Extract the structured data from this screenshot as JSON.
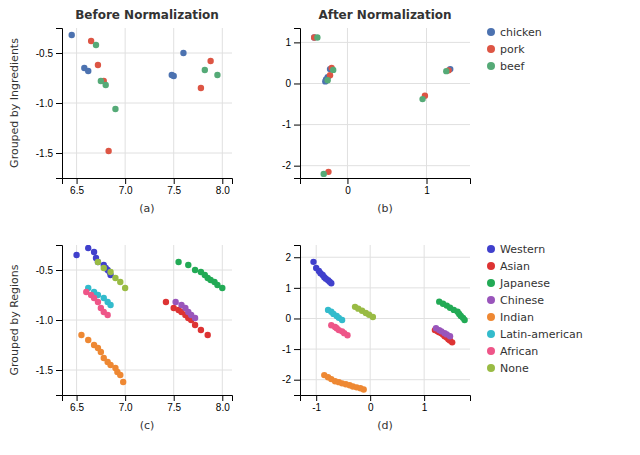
{
  "chart_data": [
    {
      "type": "scatter",
      "title": "Before Normalization",
      "xlabel": "(a)",
      "ylabel": "Grouped by Ingredients",
      "xlim": [
        6.35,
        8.1
      ],
      "ylim": [
        -1.75,
        -0.25
      ],
      "xticks": [
        6.5,
        {
          "value": 7.0,
          "label": "7.0"
        },
        7.5,
        {
          "value": 8.0,
          "label": "8.0"
        }
      ],
      "yticks": [
        -1.5,
        {
          "value": -1.0,
          "label": "-1.0"
        },
        -0.5
      ],
      "grid": true,
      "series": [
        {
          "color": "#4c72b0",
          "x": [
            6.45,
            6.58,
            6.62,
            7.48,
            7.5,
            7.6
          ],
          "values": [
            -0.32,
            -0.65,
            -0.68,
            -0.72,
            -0.73,
            -0.5
          ]
        },
        {
          "color": "#dd5544",
          "x": [
            6.65,
            6.72,
            6.78,
            6.83,
            7.78,
            7.88
          ],
          "values": [
            -0.38,
            -0.62,
            -0.78,
            -1.48,
            -0.85,
            -0.58
          ]
        },
        {
          "color": "#55aa77",
          "x": [
            6.7,
            6.75,
            6.8,
            6.9,
            7.82,
            7.95
          ],
          "values": [
            -0.42,
            -0.78,
            -0.82,
            -1.06,
            -0.67,
            -0.72
          ]
        }
      ]
    },
    {
      "type": "scatter",
      "title": "After Normalization",
      "xlabel": "(b)",
      "xlim": [
        -0.6,
        1.55
      ],
      "ylim": [
        -2.3,
        1.35
      ],
      "xticks": [
        0,
        1
      ],
      "yticks": [
        -2,
        -1,
        0,
        1
      ],
      "grid": true,
      "legend": "right",
      "series": [
        {
          "name": "chicken",
          "color": "#4c72b0",
          "x": [
            -0.42,
            -0.22,
            -0.25,
            -0.27,
            -0.28,
            1.3
          ],
          "values": [
            1.12,
            0.35,
            0.15,
            0.1,
            0.05,
            0.35
          ]
        },
        {
          "name": "pork",
          "color": "#dd5544",
          "x": [
            -0.42,
            -0.2,
            -0.22,
            -0.24,
            0.98,
            1.28
          ],
          "values": [
            1.12,
            0.38,
            0.2,
            -2.15,
            -0.3,
            0.32
          ]
        },
        {
          "name": "beef",
          "color": "#55aa77",
          "x": [
            -0.38,
            -0.18,
            -0.25,
            -0.3,
            0.95,
            1.25
          ],
          "values": [
            1.12,
            0.33,
            0.08,
            -2.2,
            -0.38,
            0.3
          ]
        }
      ]
    },
    {
      "type": "scatter",
      "xlabel": "(c)",
      "ylabel": "Grouped by Regions",
      "xlim": [
        6.35,
        8.1
      ],
      "ylim": [
        -1.75,
        -0.25
      ],
      "xticks": [
        6.5,
        {
          "value": 7.0,
          "label": "7.0"
        },
        7.5,
        {
          "value": 8.0,
          "label": "8.0"
        }
      ],
      "yticks": [
        -1.5,
        {
          "value": -1.0,
          "label": "-1.0"
        },
        -0.5
      ],
      "grid": true,
      "series": [
        {
          "color": "#4040cc",
          "x": [
            6.5,
            6.62,
            6.68,
            6.7,
            6.72,
            6.78,
            6.8,
            6.82,
            6.84,
            6.85
          ],
          "values": [
            -0.35,
            -0.28,
            -0.32,
            -0.38,
            -0.42,
            -0.45,
            -0.48,
            -0.5,
            -0.52,
            -0.55
          ]
        },
        {
          "color": "#dd3333",
          "x": [
            7.42,
            7.5,
            7.55,
            7.58,
            7.62,
            7.65,
            7.68,
            7.72,
            7.78,
            7.85
          ],
          "values": [
            -0.82,
            -0.88,
            -0.9,
            -0.92,
            -0.95,
            -0.98,
            -1.0,
            -1.05,
            -1.1,
            -1.15
          ]
        },
        {
          "color": "#22aa55",
          "x": [
            7.55,
            7.65,
            7.72,
            7.78,
            7.82,
            7.85,
            7.88,
            7.92,
            7.95,
            8.0
          ],
          "values": [
            -0.42,
            -0.45,
            -0.5,
            -0.52,
            -0.55,
            -0.58,
            -0.6,
            -0.62,
            -0.65,
            -0.68
          ]
        },
        {
          "color": "#9955bb",
          "x": [
            7.52,
            7.58,
            7.62,
            7.65,
            7.68,
            7.72
          ],
          "values": [
            -0.82,
            -0.85,
            -0.88,
            -0.92,
            -0.95,
            -0.98
          ]
        },
        {
          "color": "#ee8833",
          "x": [
            6.55,
            6.62,
            6.68,
            6.72,
            6.75,
            6.78,
            6.82,
            6.85,
            6.9,
            6.92,
            6.95,
            6.98
          ],
          "values": [
            -1.15,
            -1.2,
            -1.25,
            -1.28,
            -1.32,
            -1.38,
            -1.42,
            -1.45,
            -1.48,
            -1.52,
            -1.55,
            -1.62
          ]
        },
        {
          "color": "#33bbcc",
          "x": [
            6.62,
            6.68,
            6.72,
            6.78,
            6.82,
            6.85
          ],
          "values": [
            -0.68,
            -0.72,
            -0.75,
            -0.78,
            -0.82,
            -0.85
          ]
        },
        {
          "color": "#ee5588",
          "x": [
            6.6,
            6.65,
            6.68,
            6.72,
            6.75,
            6.78,
            6.82
          ],
          "values": [
            -0.72,
            -0.75,
            -0.78,
            -0.82,
            -0.88,
            -0.92,
            -0.95
          ]
        },
        {
          "color": "#99bb44",
          "x": [
            6.72,
            6.78,
            6.85,
            6.9,
            6.95,
            7.0
          ],
          "values": [
            -0.42,
            -0.48,
            -0.52,
            -0.58,
            -0.62,
            -0.68
          ]
        }
      ]
    },
    {
      "type": "scatter",
      "xlabel": "(d)",
      "xlim": [
        -1.3,
        1.85
      ],
      "ylim": [
        -2.5,
        2.4
      ],
      "xticks": [
        -1,
        0,
        1
      ],
      "yticks": [
        -2,
        -1,
        0,
        1,
        2
      ],
      "grid": true,
      "legend": "right",
      "series": [
        {
          "name": "Western",
          "color": "#4040cc",
          "x": [
            -1.05,
            -1.0,
            -0.95,
            -0.92,
            -0.88,
            -0.85,
            -0.82,
            -0.78,
            -0.75,
            -0.72
          ],
          "values": [
            1.85,
            1.65,
            1.55,
            1.48,
            1.42,
            1.35,
            1.3,
            1.25,
            1.2,
            1.15
          ]
        },
        {
          "name": "Asian",
          "color": "#dd3333",
          "x": [
            1.2,
            1.25,
            1.28,
            1.32,
            1.35,
            1.38,
            1.42,
            1.45,
            1.48,
            1.52
          ],
          "values": [
            -0.38,
            -0.42,
            -0.45,
            -0.48,
            -0.52,
            -0.58,
            -0.62,
            -0.68,
            -0.72,
            -0.78
          ]
        },
        {
          "name": "Japanese",
          "color": "#22aa55",
          "x": [
            1.28,
            1.35,
            1.42,
            1.48,
            1.55,
            1.62,
            1.65,
            1.68,
            1.72,
            1.75
          ],
          "values": [
            0.55,
            0.48,
            0.42,
            0.35,
            0.28,
            0.22,
            0.15,
            0.08,
            0.02,
            -0.05
          ]
        },
        {
          "name": "Chinese",
          "color": "#9955bb",
          "x": [
            1.22,
            1.28,
            1.32,
            1.38,
            1.42,
            1.48
          ],
          "values": [
            -0.32,
            -0.38,
            -0.42,
            -0.48,
            -0.52,
            -0.58
          ]
        },
        {
          "name": "Indian",
          "color": "#ee8833",
          "x": [
            -0.85,
            -0.78,
            -0.72,
            -0.65,
            -0.58,
            -0.52,
            -0.45,
            -0.38,
            -0.32,
            -0.25,
            -0.18,
            -0.12
          ],
          "values": [
            -1.85,
            -1.92,
            -1.98,
            -2.05,
            -2.08,
            -2.12,
            -2.15,
            -2.18,
            -2.22,
            -2.25,
            -2.28,
            -2.32
          ]
        },
        {
          "name": "Latin-american",
          "color": "#33bbcc",
          "x": [
            -0.78,
            -0.72,
            -0.68,
            -0.62,
            -0.58,
            -0.52
          ],
          "values": [
            0.28,
            0.22,
            0.15,
            0.08,
            0.02,
            -0.05
          ]
        },
        {
          "name": "African",
          "color": "#ee5588",
          "x": [
            -0.72,
            -0.65,
            -0.62,
            -0.58,
            -0.52,
            -0.48,
            -0.42
          ],
          "values": [
            -0.22,
            -0.28,
            -0.32,
            -0.38,
            -0.42,
            -0.48,
            -0.55
          ]
        },
        {
          "name": "None",
          "color": "#99bb44",
          "x": [
            -0.28,
            -0.22,
            -0.15,
            -0.08,
            -0.02,
            0.05
          ],
          "values": [
            0.38,
            0.32,
            0.25,
            0.18,
            0.12,
            0.05
          ]
        }
      ]
    }
  ]
}
